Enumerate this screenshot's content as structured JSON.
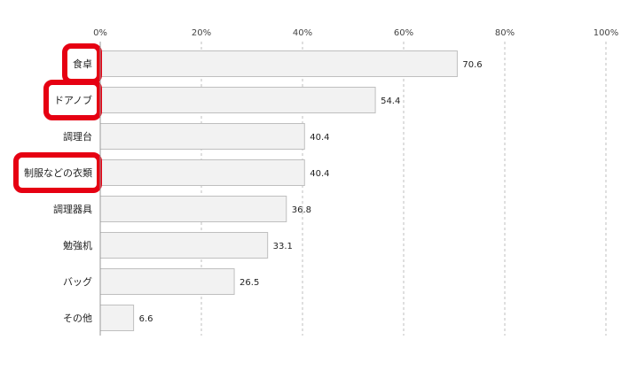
{
  "chart_data": {
    "type": "bar",
    "orientation": "horizontal",
    "categories": [
      "食卓",
      "ドアノブ",
      "調理台",
      "制服などの衣類",
      "調理器具",
      "勉強机",
      "バッグ",
      "その他"
    ],
    "values": [
      70.6,
      54.4,
      40.4,
      40.4,
      36.8,
      33.1,
      26.5,
      6.6
    ],
    "value_labels": [
      "70.6",
      "54.4",
      "40.4",
      "40.4",
      "36.8",
      "33.1",
      "26.5",
      "6.6"
    ],
    "xlim": [
      0,
      100
    ],
    "x_ticks": [
      0,
      20,
      40,
      60,
      80,
      100
    ],
    "x_tick_labels": [
      "0%",
      "20%",
      "40%",
      "60%",
      "80%",
      "100%"
    ],
    "tick_position": "top",
    "grid": "vertical dashed",
    "highlighted_categories": [
      "食卓",
      "ドアノブ",
      "制服などの衣類"
    ],
    "colors": {
      "bar_fill": "#f2f2f2",
      "bar_stroke": "#bfbfbf",
      "highlight": "#e60012",
      "grid": "#bfbfbf",
      "axis": "#999999"
    }
  }
}
